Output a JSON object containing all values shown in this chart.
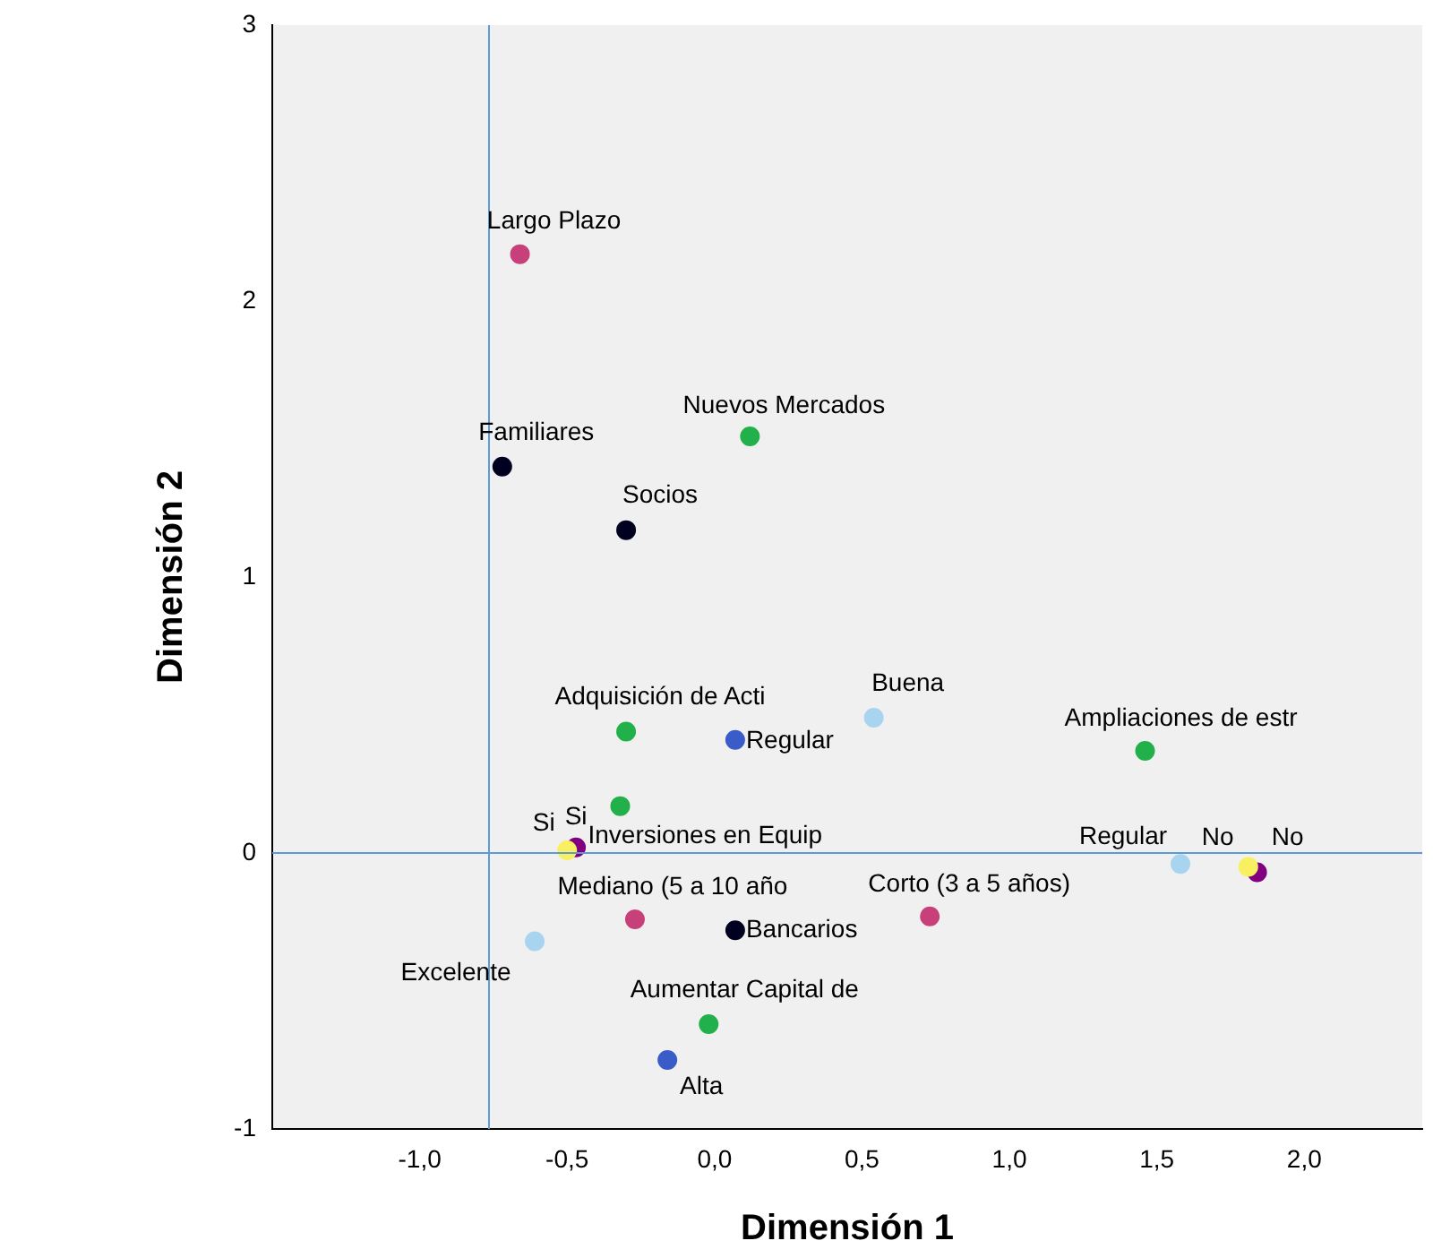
{
  "chart_data": {
    "type": "scatter",
    "xlabel": "Dimensión 1",
    "ylabel": "Dimensión 2",
    "xlim": [
      -1.5,
      2.4
    ],
    "xticks": [
      {
        "value": -1,
        "label": "-1,0"
      },
      {
        "value": -0.5,
        "label": "-0,5"
      },
      {
        "value": 0,
        "label": "0,0"
      },
      {
        "value": 0.5,
        "label": "0,5"
      },
      {
        "value": 1,
        "label": "1,0"
      },
      {
        "value": 1.5,
        "label": "1,5"
      },
      {
        "value": 2,
        "label": "2,0"
      }
    ],
    "ylim": [
      -1,
      3
    ],
    "yticks": [
      -1,
      0,
      1,
      2,
      3
    ],
    "grid": false,
    "legend": false,
    "marker": "circle",
    "series": [
      {
        "color": "#c8407a",
        "x": [
          -0.66,
          -0.27,
          0.73
        ],
        "values": [
          2.17,
          -0.24,
          -0.23
        ]
      },
      {
        "color": "#000020",
        "x": [
          -0.72,
          -0.3,
          0.07
        ],
        "values": [
          1.4,
          1.17,
          -0.28
        ]
      },
      {
        "color": "#22b04a",
        "x": [
          0.12,
          -0.3,
          -0.32,
          1.46,
          -0.02
        ],
        "values": [
          1.51,
          0.44,
          0.17,
          0.37,
          -0.62
        ]
      },
      {
        "color": "#3a5cc8",
        "x": [
          0.07,
          -0.16
        ],
        "values": [
          0.41,
          -0.75
        ]
      },
      {
        "color": "#a8d4f0",
        "x": [
          0.54,
          -0.61,
          1.58
        ],
        "values": [
          0.49,
          -0.32,
          -0.04
        ]
      },
      {
        "color": "#f8f060",
        "x": [
          -0.5,
          1.81
        ],
        "values": [
          0.01,
          -0.05
        ]
      },
      {
        "color": "#800080",
        "x": [
          -0.47,
          1.84
        ],
        "values": [
          0.02,
          -0.07
        ]
      }
    ],
    "ref_lines": [
      {
        "axis": "x",
        "value": -0.765,
        "color": "#5b9bd5"
      },
      {
        "axis": "y",
        "value": 0,
        "color": "#5b9bd5"
      }
    ],
    "annotations": [
      {
        "text": "Largo Plazo",
        "x": -0.66,
        "y": 2.17
      },
      {
        "text": "Mediano (5 a 10 año",
        "x": -0.27,
        "y": -0.24
      },
      {
        "text": "Corto (3 a 5 años)",
        "x": 0.73,
        "y": -0.23
      },
      {
        "text": "Familiares",
        "x": -0.72,
        "y": 1.4
      },
      {
        "text": "Socios",
        "x": -0.3,
        "y": 1.17
      },
      {
        "text": "Bancarios",
        "x": 0.07,
        "y": -0.28
      },
      {
        "text": "Nuevos Mercados",
        "x": 0.12,
        "y": 1.51
      },
      {
        "text": "Adquisición de Acti",
        "x": -0.3,
        "y": 0.44
      },
      {
        "text": "Inversiones en Equip",
        "x": -0.32,
        "y": 0.17
      },
      {
        "text": "Ampliaciones de estr",
        "x": 1.46,
        "y": 0.37
      },
      {
        "text": "Aumentar Capital de",
        "x": -0.02,
        "y": -0.62
      },
      {
        "text": "Regular",
        "x": 0.07,
        "y": 0.41
      },
      {
        "text": "Alta",
        "x": -0.16,
        "y": -0.75
      },
      {
        "text": "Buena",
        "x": 0.54,
        "y": 0.49
      },
      {
        "text": "Excelente",
        "x": -0.61,
        "y": -0.32
      },
      {
        "text": "Regular",
        "x": 1.58,
        "y": -0.04
      },
      {
        "text": "Si",
        "x": -0.5,
        "y": 0.01
      },
      {
        "text": "No",
        "x": 1.81,
        "y": -0.05
      },
      {
        "text": "Si",
        "x": -0.47,
        "y": 0.02
      },
      {
        "text": "No",
        "x": 1.84,
        "y": -0.07
      }
    ]
  }
}
